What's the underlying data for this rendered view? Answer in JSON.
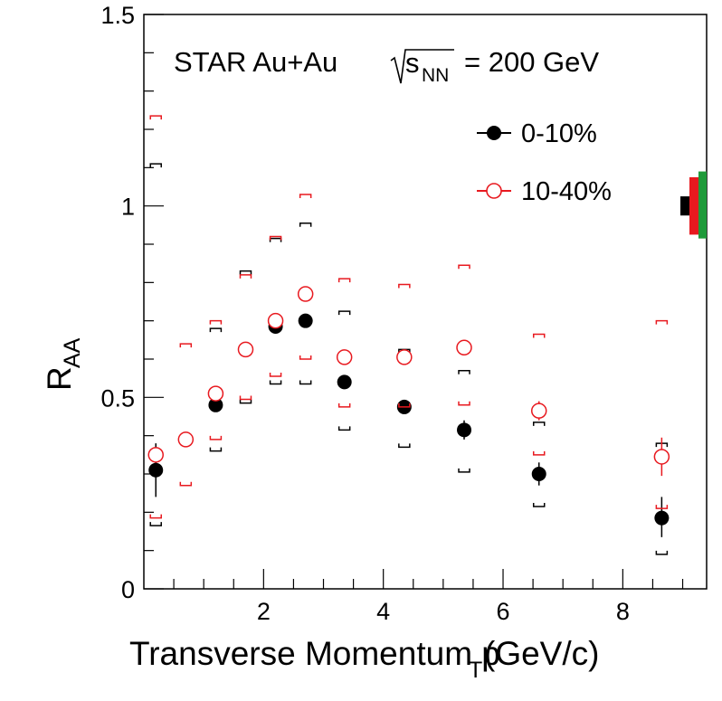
{
  "chart_data": {
    "type": "scatter",
    "title_parts": {
      "prefix": "STAR Au+Au",
      "sqrt_s": "s",
      "sqrt_sub": "NN",
      "suffix": "= 200 GeV"
    },
    "xlabel_parts": {
      "main": "Transverse Momentum p",
      "sub": "T",
      "unit": " (GeV/c)"
    },
    "ylabel_parts": {
      "main": "R",
      "sub": "AA"
    },
    "xlim": [
      0,
      9.4
    ],
    "ylim": [
      0,
      1.5
    ],
    "x_ticks": [
      {
        "value": 2,
        "label": "2"
      },
      {
        "value": 4,
        "label": "4"
      },
      {
        "value": 6,
        "label": "6"
      },
      {
        "value": 8,
        "label": "8"
      }
    ],
    "y_ticks": [
      {
        "value": 0,
        "label": "0"
      },
      {
        "value": 0.5,
        "label": "0.5"
      },
      {
        "value": 1,
        "label": "1"
      },
      {
        "value": 1.5,
        "label": "1.5"
      }
    ],
    "legend_position": "top-right",
    "series": [
      {
        "name": "0-10%",
        "color": "#000000",
        "marker": "filled-circle",
        "points": [
          {
            "x": 0.2,
            "y": 0.31,
            "err_lo": 0.07,
            "err_hi": 0.07,
            "sys_lo": 0.165,
            "sys_hi": 1.11
          },
          {
            "x": 0.7,
            "y": 0.39,
            "err_lo": 0.02,
            "err_hi": 0.02,
            "sys_lo": 0.0,
            "sys_hi": 0.0
          },
          {
            "x": 1.2,
            "y": 0.48,
            "err_lo": 0.01,
            "err_hi": 0.01,
            "sys_lo": 0.36,
            "sys_hi": 0.68
          },
          {
            "x": 1.7,
            "y": 0.625,
            "err_lo": 0.01,
            "err_hi": 0.01,
            "sys_lo": 0.485,
            "sys_hi": 0.83
          },
          {
            "x": 2.2,
            "y": 0.685,
            "err_lo": 0.01,
            "err_hi": 0.01,
            "sys_lo": 0.535,
            "sys_hi": 0.915
          },
          {
            "x": 2.7,
            "y": 0.7,
            "err_lo": 0.01,
            "err_hi": 0.01,
            "sys_lo": 0.535,
            "sys_hi": 0.955
          },
          {
            "x": 3.35,
            "y": 0.54,
            "err_lo": 0.015,
            "err_hi": 0.015,
            "sys_lo": 0.415,
            "sys_hi": 0.725
          },
          {
            "x": 4.35,
            "y": 0.475,
            "err_lo": 0.015,
            "err_hi": 0.015,
            "sys_lo": 0.37,
            "sys_hi": 0.625
          },
          {
            "x": 5.35,
            "y": 0.415,
            "err_lo": 0.025,
            "err_hi": 0.025,
            "sys_lo": 0.305,
            "sys_hi": 0.57
          },
          {
            "x": 6.6,
            "y": 0.3,
            "err_lo": 0.03,
            "err_hi": 0.03,
            "sys_lo": 0.215,
            "sys_hi": 0.435
          },
          {
            "x": 8.65,
            "y": 0.185,
            "err_lo": 0.05,
            "err_hi": 0.055,
            "sys_lo": 0.09,
            "sys_hi": 0.38
          }
        ]
      },
      {
        "name": "10-40%",
        "color": "#e8191f",
        "marker": "open-circle",
        "points": [
          {
            "x": 0.2,
            "y": 0.35,
            "err_lo": 0.015,
            "err_hi": 0.015,
            "sys_lo": 0.185,
            "sys_hi": 1.235
          },
          {
            "x": 0.7,
            "y": 0.39,
            "err_lo": 0.01,
            "err_hi": 0.01,
            "sys_lo": 0.27,
            "sys_hi": 0.64
          },
          {
            "x": 1.2,
            "y": 0.51,
            "err_lo": 0.01,
            "err_hi": 0.01,
            "sys_lo": 0.39,
            "sys_hi": 0.7
          },
          {
            "x": 1.7,
            "y": 0.625,
            "err_lo": 0.01,
            "err_hi": 0.01,
            "sys_lo": 0.495,
            "sys_hi": 0.82
          },
          {
            "x": 2.2,
            "y": 0.7,
            "err_lo": 0.01,
            "err_hi": 0.01,
            "sys_lo": 0.555,
            "sys_hi": 0.92
          },
          {
            "x": 2.7,
            "y": 0.77,
            "err_lo": 0.01,
            "err_hi": 0.01,
            "sys_lo": 0.6,
            "sys_hi": 1.03
          },
          {
            "x": 3.35,
            "y": 0.605,
            "err_lo": 0.01,
            "err_hi": 0.01,
            "sys_lo": 0.475,
            "sys_hi": 0.81
          },
          {
            "x": 4.35,
            "y": 0.605,
            "err_lo": 0.01,
            "err_hi": 0.01,
            "sys_lo": 0.475,
            "sys_hi": 0.795
          },
          {
            "x": 5.35,
            "y": 0.63,
            "err_lo": 0.015,
            "err_hi": 0.015,
            "sys_lo": 0.48,
            "sys_hi": 0.845
          },
          {
            "x": 6.6,
            "y": 0.465,
            "err_lo": 0.025,
            "err_hi": 0.025,
            "sys_lo": 0.35,
            "sys_hi": 0.665
          },
          {
            "x": 8.65,
            "y": 0.345,
            "err_lo": 0.05,
            "err_hi": 0.05,
            "sys_lo": 0.21,
            "sys_hi": 0.7
          }
        ]
      }
    ],
    "normalization_boxes": [
      {
        "color": "#000000",
        "lo": 0.975,
        "hi": 1.025
      },
      {
        "color": "#e8191f",
        "lo": 0.925,
        "hi": 1.075
      },
      {
        "color": "#1f9a3a",
        "lo": 0.915,
        "hi": 1.09
      }
    ]
  }
}
